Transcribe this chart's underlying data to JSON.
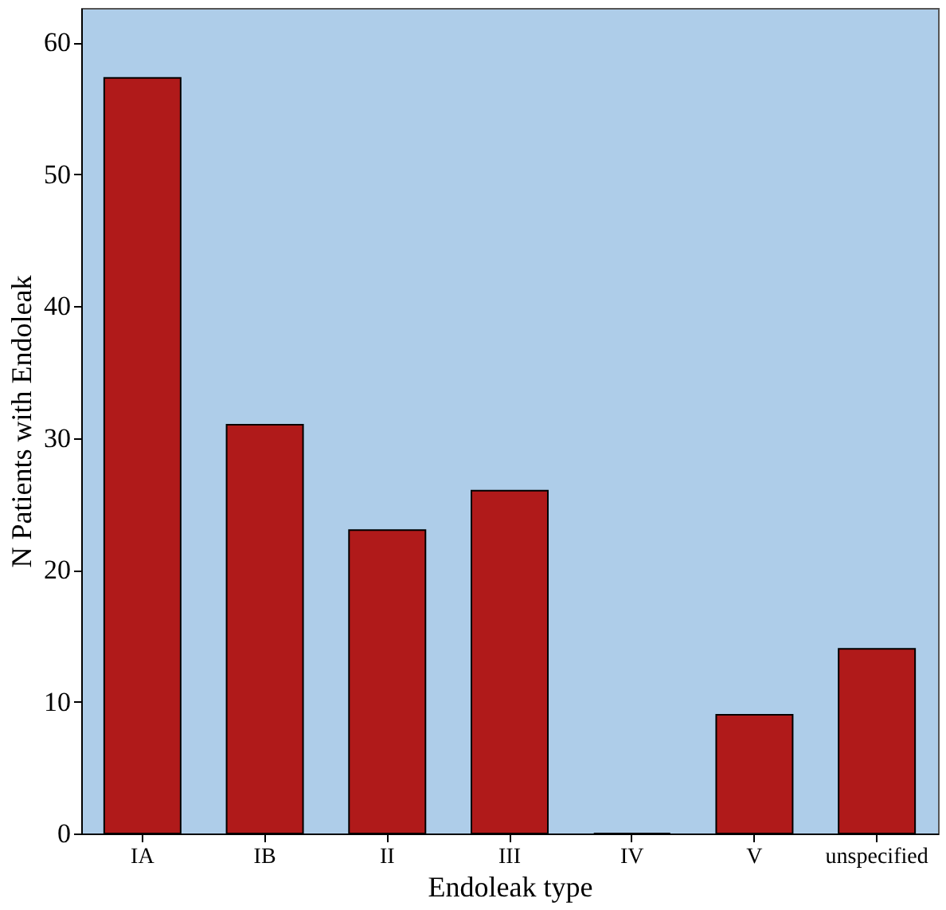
{
  "chart_data": {
    "type": "bar",
    "xlabel": "Endoleak type",
    "ylabel": "N Patients with Endoleak",
    "categories": [
      "IA",
      "IB",
      "II",
      "III",
      "IV",
      "V",
      "unspecified"
    ],
    "values": [
      57.3,
      31,
      23,
      26,
      0,
      9,
      14
    ],
    "color": "#b01a1a",
    "ylim": [
      0,
      62.6
    ],
    "yticks": [
      0,
      10,
      20,
      30,
      40,
      50,
      60
    ],
    "grid": false
  }
}
